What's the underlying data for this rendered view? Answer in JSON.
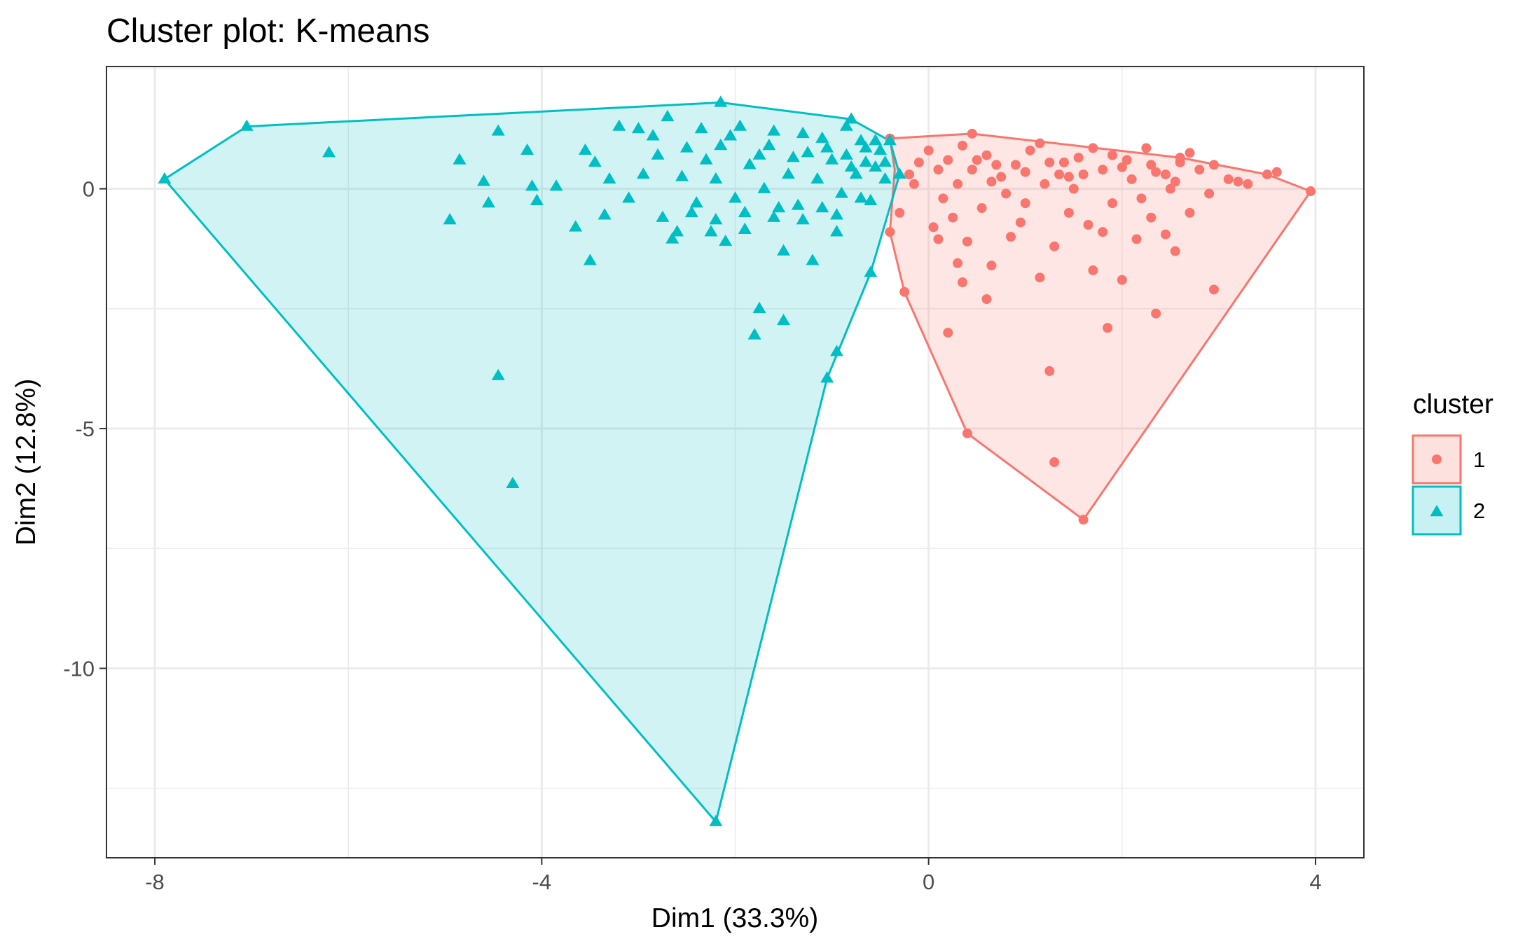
{
  "chart_data": {
    "type": "scatter",
    "title": "Cluster plot: K-means",
    "xlabel": "Dim1 (33.3%)",
    "ylabel": "Dim2 (12.8%)",
    "xlim": [
      -8.5,
      4.5
    ],
    "ylim": [
      -13.95,
      2.55
    ],
    "x_ticks": [
      -8,
      -4,
      0,
      4
    ],
    "x_tick_labels": [
      "-8",
      "-4",
      "0",
      "4"
    ],
    "y_ticks": [
      0,
      -5,
      -10
    ],
    "y_tick_labels": [
      "0",
      "-5",
      "-10"
    ],
    "grid": true,
    "legend": {
      "title": "cluster",
      "position": "right"
    },
    "series": [
      {
        "name": "1",
        "marker": "circle",
        "color": "#f8766d",
        "hull": [
          [
            -0.4,
            1.05
          ],
          [
            0.45,
            1.15
          ],
          [
            2.6,
            0.65
          ],
          [
            3.5,
            0.3
          ],
          [
            3.95,
            -0.05
          ],
          [
            1.6,
            -6.9
          ],
          [
            0.4,
            -5.1
          ],
          [
            -0.25,
            -2.15
          ],
          [
            -0.4,
            -0.9
          ],
          [
            -0.35,
            0.4
          ]
        ],
        "points": [
          [
            -0.4,
            1.05
          ],
          [
            0.45,
            1.15
          ],
          [
            2.6,
            0.65
          ],
          [
            3.5,
            0.3
          ],
          [
            3.95,
            -0.05
          ],
          [
            1.6,
            -6.9
          ],
          [
            0.4,
            -5.1
          ],
          [
            -0.25,
            -2.15
          ],
          [
            -0.4,
            -0.9
          ],
          [
            1.3,
            -5.7
          ],
          [
            1.25,
            -3.8
          ],
          [
            0.2,
            -3.0
          ],
          [
            1.85,
            -2.9
          ],
          [
            2.35,
            -2.6
          ],
          [
            2.95,
            -2.1
          ],
          [
            0.6,
            -2.3
          ],
          [
            0.35,
            -1.95
          ],
          [
            1.15,
            -1.85
          ],
          [
            2.0,
            -1.9
          ],
          [
            0.65,
            -1.6
          ],
          [
            0.3,
            -1.55
          ],
          [
            1.7,
            -1.7
          ],
          [
            0.1,
            -1.05
          ],
          [
            0.85,
            -1.0
          ],
          [
            1.8,
            -0.9
          ],
          [
            2.55,
            -1.3
          ],
          [
            0.05,
            -0.8
          ],
          [
            1.45,
            -0.5
          ],
          [
            2.3,
            -0.6
          ],
          [
            0.55,
            -0.4
          ],
          [
            1.0,
            -0.3
          ],
          [
            2.7,
            -0.5
          ],
          [
            3.1,
            0.2
          ],
          [
            3.3,
            0.1
          ],
          [
            0.2,
            0.6
          ],
          [
            0.45,
            0.4
          ],
          [
            0.75,
            0.25
          ],
          [
            1.05,
            0.8
          ],
          [
            1.2,
            0.1
          ],
          [
            1.4,
            0.55
          ],
          [
            1.6,
            0.3
          ],
          [
            1.9,
            0.7
          ],
          [
            2.1,
            0.2
          ],
          [
            2.3,
            0.5
          ],
          [
            2.5,
            0.0
          ],
          [
            2.8,
            0.4
          ],
          [
            -0.2,
            0.3
          ],
          [
            0.0,
            0.8
          ],
          [
            0.15,
            -0.2
          ],
          [
            0.35,
            0.9
          ],
          [
            0.6,
            0.7
          ],
          [
            0.9,
            0.5
          ],
          [
            1.15,
            0.95
          ],
          [
            1.35,
            0.3
          ],
          [
            1.7,
            0.85
          ],
          [
            2.0,
            0.45
          ],
          [
            2.25,
            0.85
          ],
          [
            2.45,
            0.3
          ],
          [
            2.7,
            0.75
          ],
          [
            2.9,
            -0.1
          ],
          [
            3.2,
            0.15
          ],
          [
            0.3,
            0.1
          ],
          [
            0.8,
            -0.1
          ],
          [
            1.5,
            0.0
          ],
          [
            1.9,
            -0.3
          ],
          [
            2.2,
            -0.2
          ],
          [
            -0.1,
            0.55
          ],
          [
            0.5,
            0.6
          ],
          [
            1.0,
            0.35
          ],
          [
            1.55,
            0.65
          ],
          [
            2.05,
            0.6
          ],
          [
            2.6,
            0.55
          ],
          [
            0.1,
            0.4
          ],
          [
            0.7,
            0.5
          ],
          [
            1.25,
            0.55
          ],
          [
            1.8,
            0.4
          ],
          [
            2.35,
            0.35
          ],
          [
            2.95,
            0.5
          ],
          [
            -0.3,
            -0.5
          ],
          [
            0.25,
            -0.6
          ],
          [
            0.95,
            -0.7
          ],
          [
            1.65,
            -0.75
          ],
          [
            2.45,
            -0.95
          ],
          [
            0.4,
            -1.1
          ],
          [
            1.3,
            -1.2
          ],
          [
            2.15,
            -1.05
          ],
          [
            -0.15,
            0.1
          ],
          [
            0.65,
            0.15
          ],
          [
            1.45,
            0.25
          ],
          [
            2.55,
            0.15
          ],
          [
            3.6,
            0.35
          ]
        ]
      },
      {
        "name": "2",
        "marker": "triangle",
        "color": "#00bfc4",
        "hull": [
          [
            -7.9,
            0.2
          ],
          [
            -7.05,
            1.3
          ],
          [
            -2.15,
            1.8
          ],
          [
            -0.8,
            1.45
          ],
          [
            -0.4,
            1.0
          ],
          [
            -0.3,
            0.3
          ],
          [
            -0.6,
            -1.75
          ],
          [
            -1.05,
            -3.95
          ],
          [
            -2.2,
            -13.2
          ]
        ],
        "points": [
          [
            -7.9,
            0.2
          ],
          [
            -7.05,
            1.3
          ],
          [
            -2.15,
            1.8
          ],
          [
            -0.8,
            1.45
          ],
          [
            -0.4,
            1.0
          ],
          [
            -0.3,
            0.3
          ],
          [
            -0.6,
            -1.75
          ],
          [
            -1.05,
            -3.95
          ],
          [
            -2.2,
            -13.2
          ],
          [
            -6.2,
            0.75
          ],
          [
            -4.3,
            -6.15
          ],
          [
            -4.45,
            -3.9
          ],
          [
            -4.95,
            -0.65
          ],
          [
            -4.85,
            0.6
          ],
          [
            -4.6,
            0.15
          ],
          [
            -4.55,
            -0.3
          ],
          [
            -4.45,
            1.2
          ],
          [
            -4.15,
            0.8
          ],
          [
            -4.1,
            0.05
          ],
          [
            -4.05,
            -0.25
          ],
          [
            -3.85,
            0.05
          ],
          [
            -3.55,
            0.8
          ],
          [
            -3.45,
            0.55
          ],
          [
            -3.35,
            -0.55
          ],
          [
            -3.5,
            -1.5
          ],
          [
            -3.2,
            1.3
          ],
          [
            -3.0,
            1.25
          ],
          [
            -2.8,
            0.7
          ],
          [
            -2.7,
            1.5
          ],
          [
            -2.55,
            0.25
          ],
          [
            -2.4,
            -0.3
          ],
          [
            -2.25,
            -0.9
          ],
          [
            -2.1,
            -1.1
          ],
          [
            -1.9,
            -0.5
          ],
          [
            -1.8,
            -3.05
          ],
          [
            -1.75,
            -2.5
          ],
          [
            -1.5,
            -2.75
          ],
          [
            -1.5,
            -1.3
          ],
          [
            -1.2,
            -1.5
          ],
          [
            -0.95,
            -3.4
          ],
          [
            -0.95,
            -0.9
          ],
          [
            -0.9,
            -0.1
          ],
          [
            -0.85,
            0.7
          ],
          [
            -0.7,
            1.0
          ],
          [
            -0.6,
            -0.25
          ],
          [
            -0.55,
            0.45
          ],
          [
            -0.5,
            0.8
          ],
          [
            -0.45,
            0.2
          ],
          [
            -2.5,
            0.85
          ],
          [
            -2.3,
            0.6
          ],
          [
            -2.05,
            1.1
          ],
          [
            -1.85,
            0.5
          ],
          [
            -1.65,
            0.9
          ],
          [
            -1.45,
            0.3
          ],
          [
            -1.3,
            1.15
          ],
          [
            -1.15,
            0.2
          ],
          [
            -1.0,
            0.6
          ],
          [
            -0.75,
            0.3
          ],
          [
            -0.65,
            0.85
          ],
          [
            -2.95,
            0.3
          ],
          [
            -2.75,
            -0.6
          ],
          [
            -2.6,
            -0.9
          ],
          [
            -2.45,
            -0.5
          ],
          [
            -2.2,
            0.2
          ],
          [
            -2.0,
            -0.2
          ],
          [
            -1.7,
            0.0
          ],
          [
            -1.55,
            -0.4
          ],
          [
            -1.35,
            -0.35
          ],
          [
            -1.1,
            -0.4
          ],
          [
            -3.1,
            -0.2
          ],
          [
            -3.3,
            0.2
          ],
          [
            -3.65,
            -0.8
          ],
          [
            -2.85,
            1.1
          ],
          [
            -2.35,
            1.25
          ],
          [
            -1.95,
            1.3
          ],
          [
            -1.6,
            1.2
          ],
          [
            -1.25,
            0.75
          ],
          [
            -0.85,
            1.3
          ],
          [
            -1.1,
            1.05
          ],
          [
            -0.55,
            1.0
          ],
          [
            -0.45,
            0.55
          ],
          [
            -0.65,
            0.55
          ],
          [
            -0.8,
            0.45
          ],
          [
            -1.05,
            0.85
          ],
          [
            -1.4,
            0.65
          ],
          [
            -1.75,
            0.7
          ],
          [
            -2.15,
            0.9
          ],
          [
            -2.65,
            -1.05
          ],
          [
            -2.2,
            -0.65
          ],
          [
            -1.9,
            -0.85
          ],
          [
            -1.6,
            -0.6
          ],
          [
            -1.3,
            -0.65
          ],
          [
            -0.95,
            -0.55
          ],
          [
            -0.7,
            -0.2
          ]
        ]
      }
    ]
  }
}
